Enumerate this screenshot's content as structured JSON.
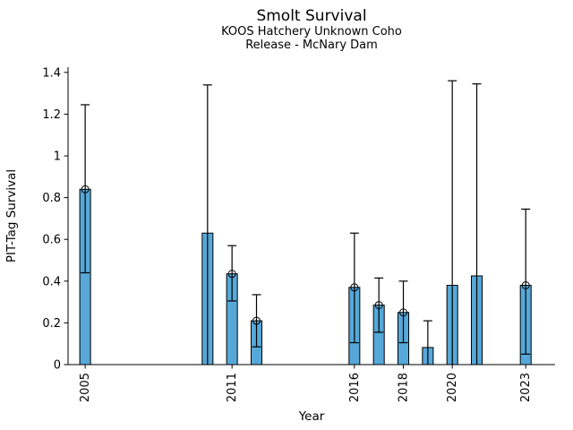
{
  "header": {
    "title": "Smolt Survival",
    "subtitle1": "KOOS Hatchery Unknown Coho",
    "subtitle2": "Release - McNary Dam"
  },
  "chart_data": {
    "type": "bar",
    "title": "Smolt Survival",
    "subtitle": "KOOS Hatchery Unknown Coho\nRelease - McNary Dam",
    "xlabel": "Year",
    "ylabel": "PIT-Tag Survival",
    "xlim": [
      2004.3,
      2024.2
    ],
    "ylim": [
      0,
      1.425
    ],
    "grid": false,
    "legend": "none",
    "bar_width_years": 0.44,
    "colors": {
      "bar_fill": "#56A8D8",
      "bar_edge": "#000000",
      "error_bar": "#000000",
      "axis": "#000000"
    },
    "yticks": {
      "values": [
        0,
        0.2,
        0.4,
        0.6,
        0.8,
        1.0,
        1.2,
        1.4
      ],
      "labels": [
        "0",
        "0.2",
        "0.4",
        "0.6",
        "0.8",
        "1",
        "1.2",
        "1.4"
      ]
    },
    "xticks": {
      "values": [
        2005,
        2011,
        2016,
        2018,
        2020,
        2023
      ],
      "labels": [
        "2005",
        "2011",
        "2016",
        "2018",
        "2020",
        "2023"
      ],
      "rotation": 90
    },
    "points": [
      {
        "year": 2005,
        "value": 0.84,
        "ci_low": 0.44,
        "ci_high": 1.245,
        "marker": true
      },
      {
        "year": 2010,
        "value": 0.63,
        "ci_low": 0.0,
        "ci_high": 1.34,
        "marker": false
      },
      {
        "year": 2011,
        "value": 0.435,
        "ci_low": 0.305,
        "ci_high": 0.57,
        "marker": true
      },
      {
        "year": 2012,
        "value": 0.21,
        "ci_low": 0.085,
        "ci_high": 0.335,
        "marker": true
      },
      {
        "year": 2016,
        "value": 0.37,
        "ci_low": 0.105,
        "ci_high": 0.63,
        "marker": true
      },
      {
        "year": 2017,
        "value": 0.285,
        "ci_low": 0.155,
        "ci_high": 0.415,
        "marker": true
      },
      {
        "year": 2018,
        "value": 0.25,
        "ci_low": 0.105,
        "ci_high": 0.4,
        "marker": true
      },
      {
        "year": 2019,
        "value": 0.082,
        "ci_low": 0.0,
        "ci_high": 0.21,
        "marker": false
      },
      {
        "year": 2020,
        "value": 0.38,
        "ci_low": 0.0,
        "ci_high": 1.36,
        "marker": false
      },
      {
        "year": 2021,
        "value": 0.425,
        "ci_low": 0.0,
        "ci_high": 1.345,
        "marker": false
      },
      {
        "year": 2023,
        "value": 0.38,
        "ci_low": 0.05,
        "ci_high": 0.745,
        "marker": true
      }
    ]
  }
}
